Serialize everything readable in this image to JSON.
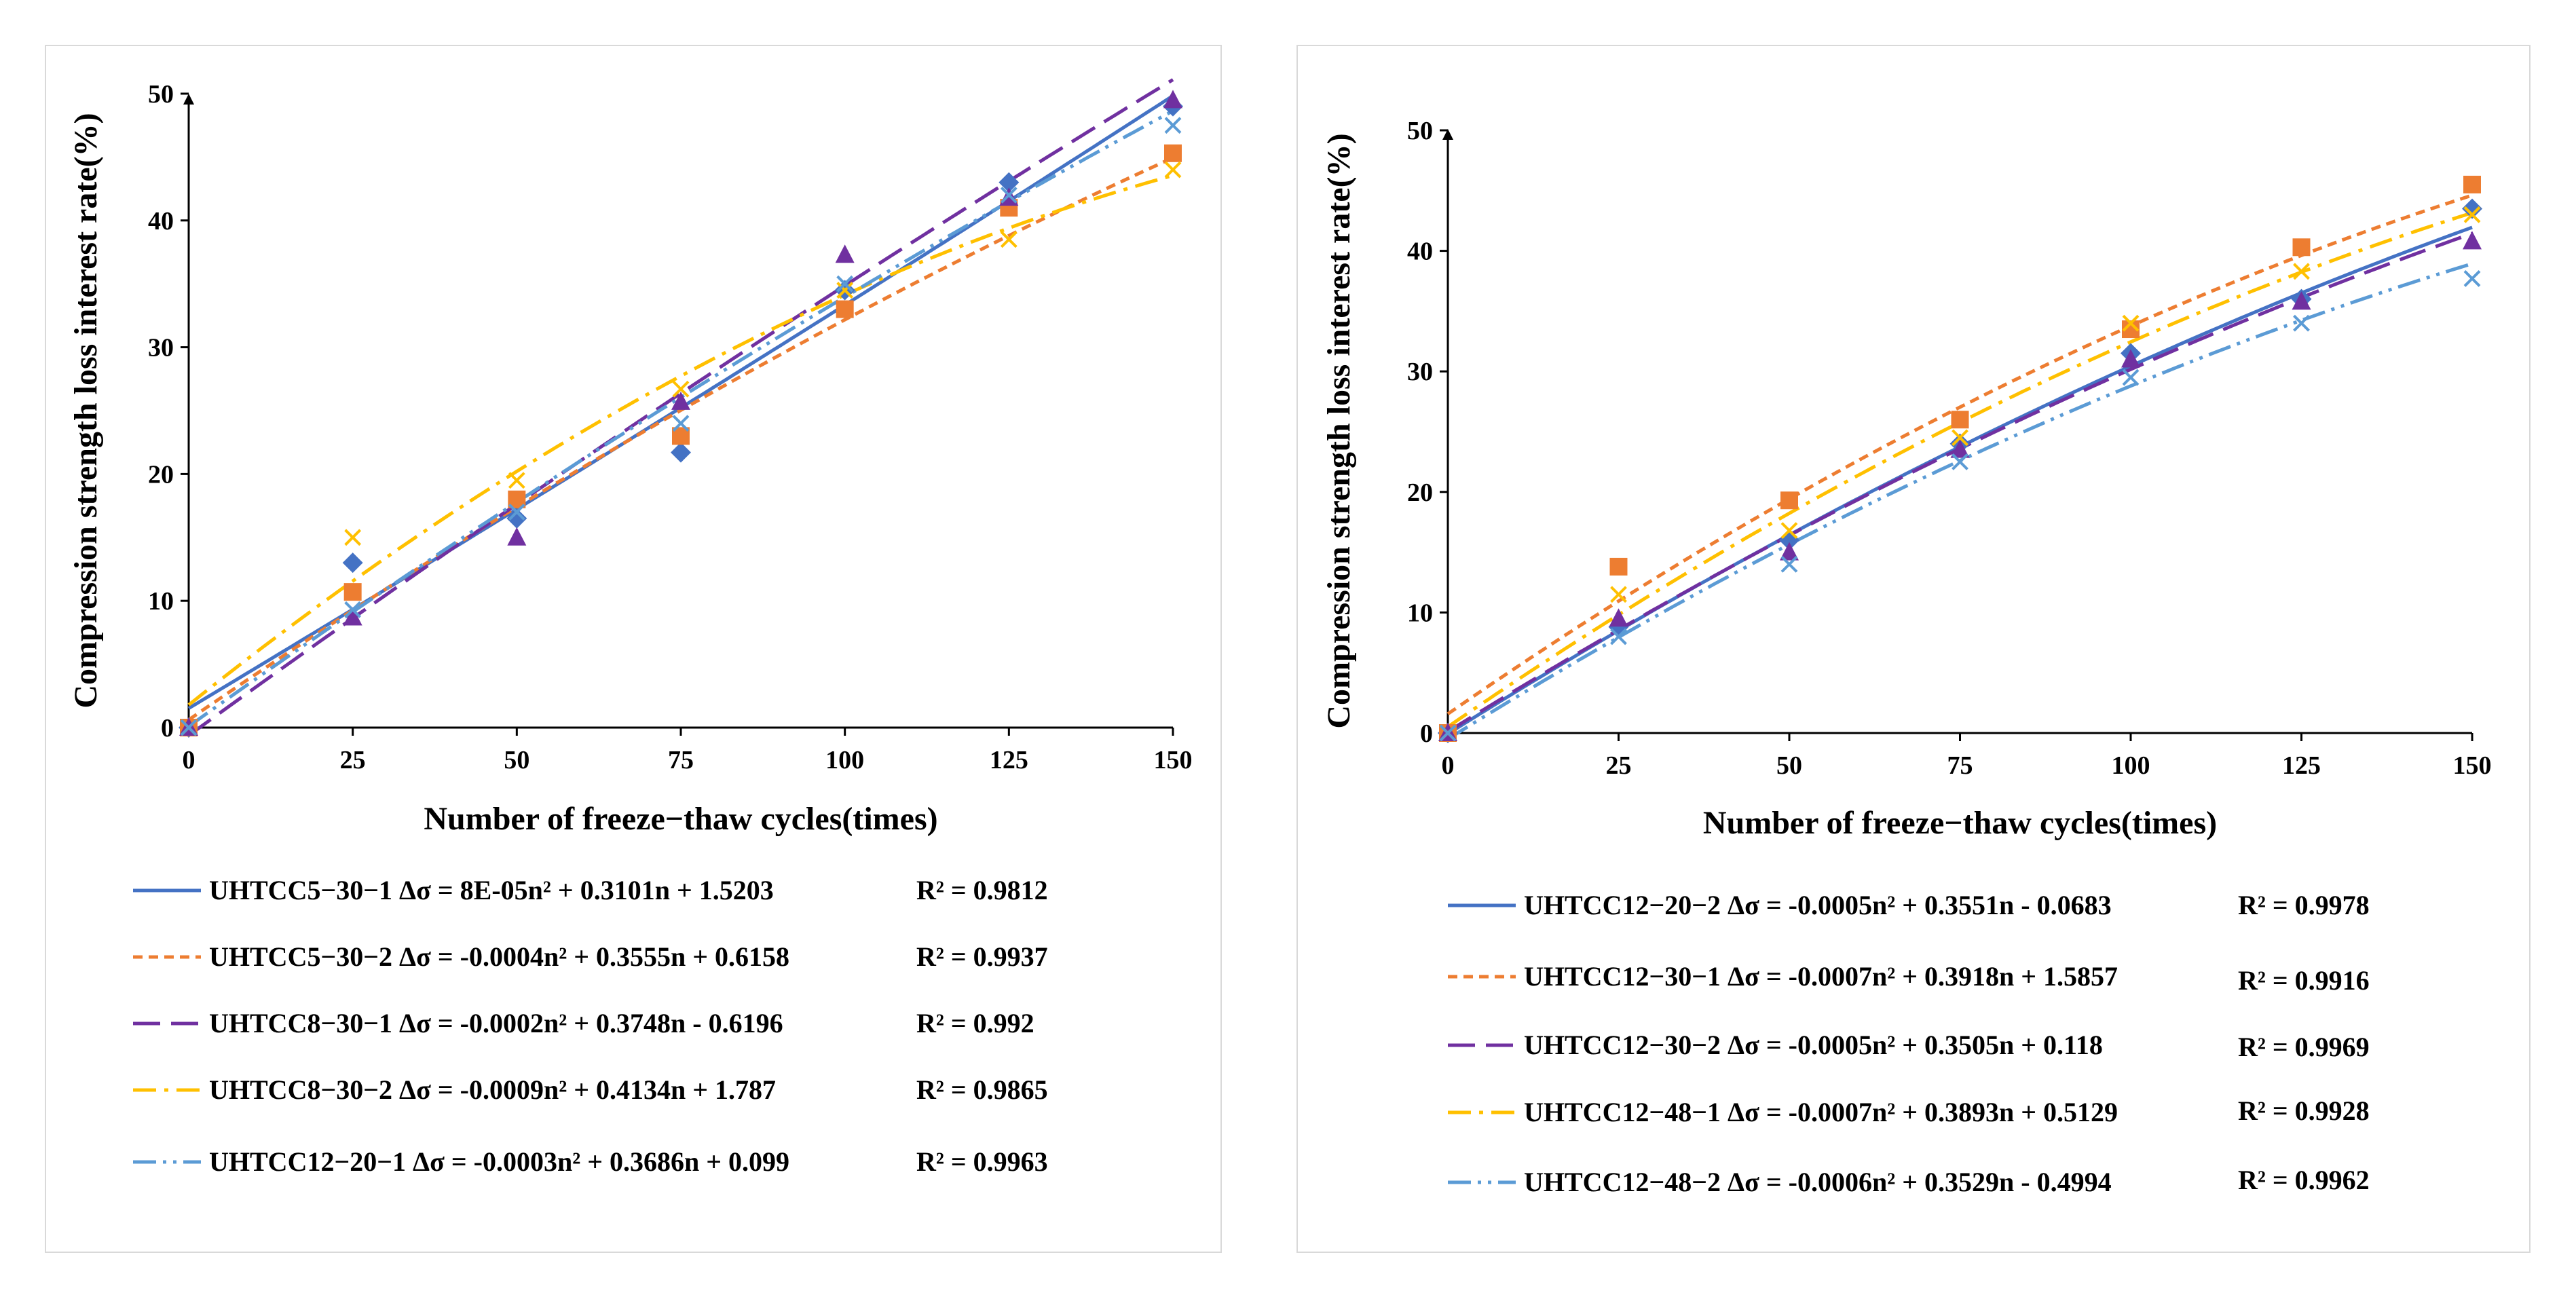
{
  "chart_data": [
    {
      "type": "scatter",
      "xlabel": "Number of freeze−thaw cycles(times)",
      "ylabel": "Compression strength loss interest rate(%)",
      "xlim": [
        0,
        150
      ],
      "ylim": [
        0,
        50
      ],
      "x_ticks": [
        "0",
        "25",
        "50",
        "75",
        "100",
        "125",
        "150"
      ],
      "y_ticks": [
        "0",
        "10",
        "20",
        "30",
        "40",
        "50"
      ],
      "x": [
        0,
        25,
        50,
        75,
        100,
        125,
        150
      ],
      "series": [
        {
          "name": "UHTCC5−30−1",
          "equation": "UHTCC5−30−1 Δσ = 8E-05n² + 0.3101n + 1.5203",
          "r2": "R² = 0.9812",
          "coef": [
            8e-05,
            0.3101,
            1.5203
          ],
          "color": "#4472C4",
          "marker": "diamond",
          "dash": "solid",
          "values": [
            0,
            13.0,
            16.5,
            21.7,
            34.5,
            43.0,
            49.0
          ]
        },
        {
          "name": "UHTCC5−30−2",
          "equation": "UHTCC5−30−2 Δσ = -0.0004n² + 0.3555n + 0.6158",
          "r2": "R² = 0.9937",
          "coef": [
            -0.0004,
            0.3555,
            0.6158
          ],
          "color": "#ED7D31",
          "marker": "square",
          "dash": "short-dash",
          "values": [
            0,
            10.7,
            18.0,
            23.0,
            33.0,
            41.0,
            45.3
          ]
        },
        {
          "name": "UHTCC8−30−1",
          "equation": "UHTCC8−30−1 Δσ = -0.0002n² + 0.3748n - 0.6196",
          "r2": "R² = 0.992",
          "coef": [
            -0.0002,
            0.3748,
            -0.6196
          ],
          "color": "#7030A0",
          "marker": "triangle",
          "dash": "long-dash",
          "values": [
            0,
            8.7,
            15.0,
            25.7,
            37.3,
            41.8,
            49.5
          ]
        },
        {
          "name": "UHTCC8−30−2",
          "equation": "UHTCC8−30−2 Δσ = -0.0009n² + 0.4134n + 1.787",
          "r2": "R² = 0.9865",
          "coef": [
            -0.0009,
            0.4134,
            1.787
          ],
          "color": "#FFC000",
          "marker": "x",
          "dash": "dash-dot",
          "values": [
            0,
            15.0,
            19.5,
            26.7,
            34.5,
            38.5,
            44.0
          ]
        },
        {
          "name": "UHTCC12−20−1",
          "equation": "UHTCC12−20−1 Δσ = -0.0003n² + 0.3686n + 0.099",
          "r2": "R² = 0.9963",
          "coef": [
            -0.0003,
            0.3686,
            0.099
          ],
          "color": "#5B9BD5",
          "marker": "x",
          "dash": "long-dash-dot-dot",
          "values": [
            0,
            9.3,
            17.0,
            24.0,
            35.0,
            42.0,
            47.5
          ]
        }
      ]
    },
    {
      "type": "scatter",
      "xlabel": "Number of freeze−thaw cycles(times)",
      "ylabel": "Compression strength loss interest rate(%)",
      "xlim": [
        0,
        150
      ],
      "ylim": [
        0,
        50
      ],
      "x_ticks": [
        "0",
        "25",
        "50",
        "75",
        "100",
        "125",
        "150"
      ],
      "y_ticks": [
        "0",
        "10",
        "20",
        "30",
        "40",
        "50"
      ],
      "x": [
        0,
        25,
        50,
        75,
        100,
        125,
        150
      ],
      "series": [
        {
          "name": "UHTCC12−20−2",
          "equation": "UHTCC12−20−2 Δσ = -0.0005n² + 0.3551n - 0.0683",
          "r2": "R² = 0.9978",
          "coef": [
            -0.0005,
            0.3551,
            -0.0683
          ],
          "color": "#4472C4",
          "marker": "diamond",
          "dash": "solid",
          "values": [
            0,
            8.8,
            16.0,
            24.0,
            31.5,
            36.0,
            43.5
          ]
        },
        {
          "name": "UHTCC12−30−1",
          "equation": "UHTCC12−30−1 Δσ = -0.0007n² + 0.3918n + 1.5857",
          "r2": "R² = 0.9916",
          "coef": [
            -0.0007,
            0.3918,
            1.5857
          ],
          "color": "#ED7D31",
          "marker": "square",
          "dash": "short-dash",
          "values": [
            0,
            13.8,
            19.3,
            26.0,
            33.5,
            40.3,
            45.5
          ]
        },
        {
          "name": "UHTCC12−30−2",
          "equation": "UHTCC12−30−2 Δσ = -0.0005n² + 0.3505n + 0.118",
          "r2": "R² = 0.9969",
          "coef": [
            -0.0005,
            0.3505,
            0.118
          ],
          "color": "#7030A0",
          "marker": "triangle",
          "dash": "long-dash",
          "values": [
            0,
            9.5,
            15.0,
            23.5,
            31.0,
            35.8,
            40.8
          ]
        },
        {
          "name": "UHTCC12−48−1",
          "equation": "UHTCC12−48−1 Δσ = -0.0007n² + 0.3893n + 0.5129",
          "r2": "R² = 0.9928",
          "coef": [
            -0.0007,
            0.3893,
            0.5129
          ],
          "color": "#FFC000",
          "marker": "x",
          "dash": "dash-dot",
          "values": [
            0,
            11.5,
            16.8,
            24.5,
            34.0,
            38.3,
            43.0
          ]
        },
        {
          "name": "UHTCC12−48−2",
          "equation": "UHTCC12−48−2 Δσ = -0.0006n² + 0.3529n - 0.4994",
          "r2": "R² = 0.9962",
          "coef": [
            -0.0006,
            0.3529,
            -0.4994
          ],
          "color": "#5B9BD5",
          "marker": "x",
          "dash": "long-dash-dot-dot",
          "values": [
            0,
            8.0,
            14.0,
            22.5,
            29.5,
            34.0,
            37.7
          ]
        }
      ]
    }
  ]
}
